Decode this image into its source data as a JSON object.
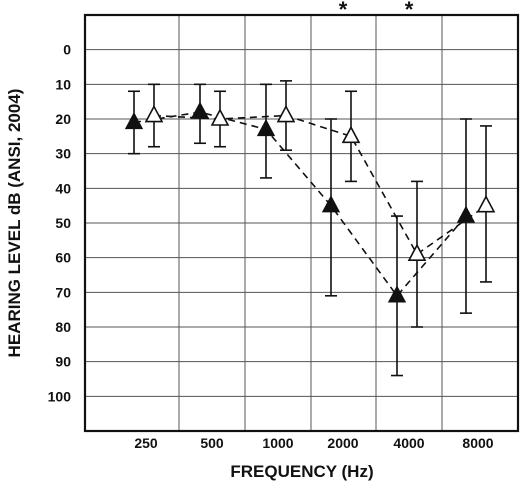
{
  "chart_data": {
    "type": "line",
    "xlabel": "FREQUENCY (Hz)",
    "ylabel": "HEARING LEVEL dB (ANSI, 2004)",
    "categories": [
      "250",
      "500",
      "1000",
      "2000",
      "4000",
      "8000"
    ],
    "y_ticks": [
      "0",
      "10",
      "20",
      "30",
      "40",
      "50",
      "60",
      "70",
      "80",
      "90",
      "100"
    ],
    "ylim": [
      -10,
      110
    ],
    "y_inverted": true,
    "grid": true,
    "significance_marks": [
      {
        "category": "2000",
        "label": "*"
      },
      {
        "category": "4000",
        "label": "*"
      }
    ],
    "series": [
      {
        "marker": "filled-triangle",
        "offset": "left",
        "values": [
          21,
          18,
          23,
          45,
          71,
          48
        ],
        "error_low": [
          12,
          10,
          10,
          20,
          48,
          20
        ],
        "error_high": [
          30,
          27,
          37,
          71,
          94,
          76
        ]
      },
      {
        "marker": "open-triangle",
        "offset": "right",
        "values": [
          19,
          20,
          19,
          25,
          59,
          45
        ],
        "error_low": [
          10,
          12,
          9,
          12,
          38,
          22
        ],
        "error_high": [
          28,
          28,
          29,
          38,
          80,
          67
        ]
      }
    ]
  }
}
